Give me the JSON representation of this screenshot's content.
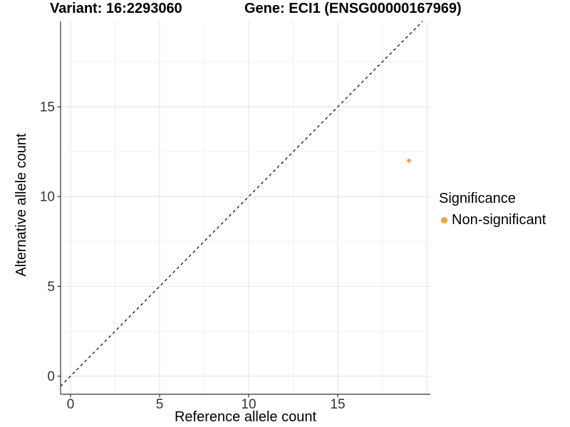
{
  "chart_data": {
    "type": "scatter",
    "title_variant": "Variant: 16:2293060",
    "title_gene": "Gene: ECI1 (ENSG00000167969)",
    "xlabel": "Reference allele count",
    "ylabel": "Alternative allele count",
    "xlim": [
      -0.56,
      20.2
    ],
    "ylim": [
      -1.01,
      19.76
    ],
    "xticks": [
      0,
      5,
      10,
      15
    ],
    "yticks": [
      0,
      5,
      10,
      15
    ],
    "minor_step": 2.5,
    "grid": true,
    "grid_major_color": "#e4e4e4",
    "grid_minor_color": "#f1f1f1",
    "axis_color": "#333333",
    "tick_label_color": "#333333",
    "identity_line": {
      "equation": "y = x",
      "style": "dashed",
      "color": "#111111"
    },
    "series": [
      {
        "name": "Non-significant",
        "color": "#F7A237",
        "points": [
          {
            "x": 19,
            "y": 12
          }
        ]
      }
    ],
    "legend": {
      "title": "Significance",
      "position": "right",
      "items": [
        {
          "label": "Non-significant",
          "color": "#F7A237"
        }
      ]
    }
  }
}
